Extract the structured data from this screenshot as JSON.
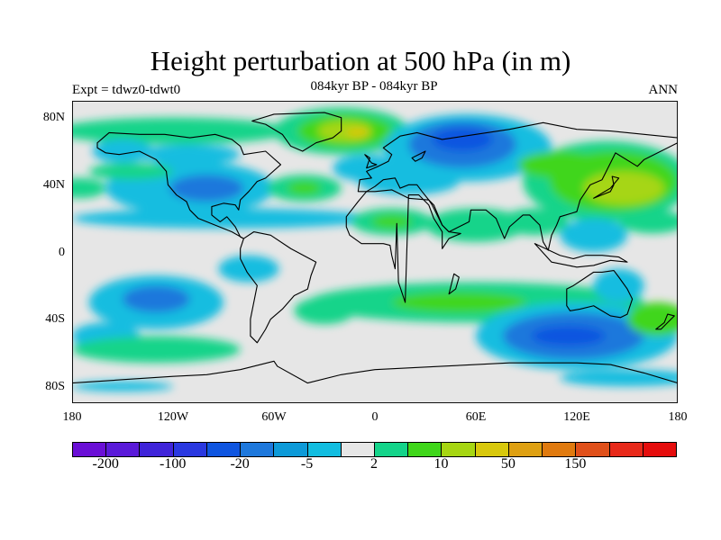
{
  "figure": {
    "title": "Height perturbation at 500 hPa (in m)",
    "expt": "Expt = tdwz0-tdwt0",
    "subtitle": "084kyr BP - 084kyr BP",
    "season": "ANN"
  },
  "map": {
    "projection": "cylindrical equidistant",
    "lon_range": [
      -180,
      180
    ],
    "lat_range": [
      -90,
      90
    ],
    "y_ticks": [
      "80N",
      "40N",
      "0",
      "40S",
      "80S"
    ],
    "x_ticks": [
      "180",
      "120W",
      "60W",
      "0",
      "60E",
      "120E",
      "180"
    ],
    "background_color": "#e6e6e6",
    "coastline_color": "#000000"
  },
  "colorbar": {
    "colors": [
      "#6a0fd6",
      "#5a1ad9",
      "#3f24d9",
      "#2a38e0",
      "#0f55e0",
      "#1e78dc",
      "#0d9ad8",
      "#12bde0",
      "#e6e6e6",
      "#14d48a",
      "#3fd61a",
      "#a6d612",
      "#d8c80c",
      "#dea012",
      "#e07a0f",
      "#e0501a",
      "#e8291a",
      "#e50d0d"
    ],
    "labels": [
      "-200",
      "-100",
      "-20",
      "-5",
      "2",
      "10",
      "50",
      "150"
    ]
  },
  "features": [
    {
      "name": "arctic-canada-positive",
      "lon": -170,
      "lat": 73,
      "sign": "+",
      "level": 1
    },
    {
      "name": "arctic-canada-positive",
      "lon": -70,
      "lat": 75,
      "sign": "+",
      "level": 1
    },
    {
      "name": "greenland-positive",
      "lon": -25,
      "lat": 72,
      "sign": "+",
      "level": 2
    },
    {
      "name": "greenland-positive-core",
      "lon": -15,
      "lat": 70,
      "sign": "+",
      "level": 3
    },
    {
      "name": "siberia-negative",
      "lon": 55,
      "lat": 68,
      "sign": "-",
      "level": 2
    },
    {
      "name": "siberia-negative-core",
      "lon": 55,
      "lat": 70,
      "sign": "-",
      "level": 3
    },
    {
      "name": "north-america-negative",
      "lon": -100,
      "lat": 42,
      "sign": "-",
      "level": 2
    },
    {
      "name": "north-atlantic-positive",
      "lon": -40,
      "lat": 40,
      "sign": "+",
      "level": 2
    },
    {
      "name": "europe-negative",
      "lon": 20,
      "lat": 40,
      "sign": "-",
      "level": 1
    },
    {
      "name": "sahara-positive",
      "lon": 10,
      "lat": 18,
      "sign": "+",
      "level": 1
    },
    {
      "name": "arabia-positive",
      "lon": 55,
      "lat": 12,
      "sign": "+",
      "level": 1
    },
    {
      "name": "northwest-pacific-positive",
      "lon": 150,
      "lat": 38,
      "sign": "+",
      "level": 3
    },
    {
      "name": "southeast-pacific-negative",
      "lon": -130,
      "lat": -28,
      "sign": "-",
      "level": 3
    },
    {
      "name": "southern-indian-negative",
      "lon": 120,
      "lat": -50,
      "sign": "-",
      "level": 3
    },
    {
      "name": "south-atlantic-positive",
      "lon": -20,
      "lat": -35,
      "sign": "+",
      "level": 1
    }
  ]
}
